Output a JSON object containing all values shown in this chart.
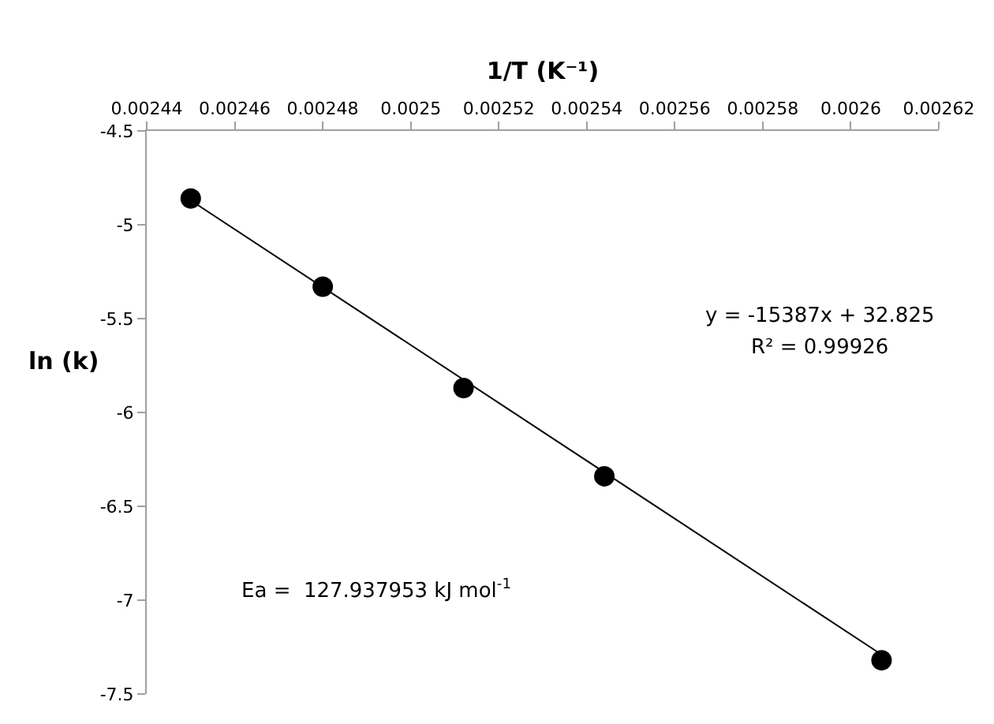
{
  "chart_data": {
    "type": "scatter",
    "xlabel": "1/T (K⁻¹)",
    "ylabel": "ln (k)",
    "x": [
      0.00245,
      0.00248,
      0.002512,
      0.002544,
      0.002607
    ],
    "series": [
      {
        "color": "#000000",
        "marker": "circle",
        "values": [
          -4.86,
          -5.33,
          -5.87,
          -6.34,
          -7.32
        ]
      },
      {
        "type": "line",
        "color": "#000000",
        "marker": "none",
        "x": [
          0.00245,
          0.002607
        ],
        "values": [
          -4.87,
          -7.29
        ]
      }
    ],
    "xlim": [
      0.00244,
      0.00262
    ],
    "xticks": [
      0.00244,
      0.00246,
      0.00248,
      0.0025,
      0.00252,
      0.00254,
      0.00256,
      0.00258,
      0.0026,
      0.00262
    ],
    "ylim": [
      -7.5,
      -4.5
    ],
    "yticks": [
      -7.5,
      -7,
      -6.5,
      -6,
      -5.5,
      -5,
      -4.5
    ],
    "annotations": [
      "y = -15387x + 32.825",
      "R² = 0.99926",
      "Ea =  127.937953 kJ mol$^{-1}$"
    ]
  }
}
